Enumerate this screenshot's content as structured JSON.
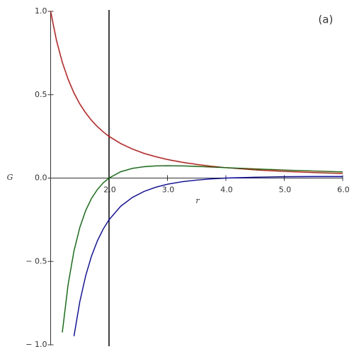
{
  "chart_data": {
    "type": "line",
    "annotation": "(a)",
    "x_label": "r",
    "y_label": "G",
    "x": [
      1,
      1.1,
      1.2,
      1.3,
      1.4,
      1.5,
      1.6,
      1.7,
      1.8,
      1.9,
      2,
      2.2,
      2.4,
      2.6,
      2.8,
      3,
      3.25,
      3.5,
      3.75,
      4,
      4.5,
      5,
      5.5,
      6
    ],
    "series": [
      {
        "color": "#e00000",
        "values": [
          1,
          0.826,
          0.694,
          0.592,
          0.51,
          0.444,
          0.391,
          0.346,
          0.309,
          0.277,
          0.25,
          0.207,
          0.174,
          0.148,
          0.128,
          0.111,
          0.095,
          0.082,
          0.071,
          0.0625,
          0.049,
          0.04,
          0.033,
          0.028
        ]
      },
      {
        "color": "#007000",
        "values": [
          null,
          null,
          -0.926,
          -0.637,
          -0.437,
          -0.296,
          -0.195,
          -0.122,
          -0.069,
          -0.029,
          0,
          0.038,
          0.058,
          0.068,
          0.073,
          0.074,
          0.073,
          0.07,
          0.066,
          0.0625,
          0.055,
          0.048,
          0.042,
          0.037
        ]
      },
      {
        "color": "#0000d0",
        "values": [
          null,
          null,
          null,
          null,
          -0.948,
          -0.741,
          -0.586,
          -0.468,
          -0.377,
          -0.306,
          -0.25,
          -0.169,
          -0.116,
          -0.08,
          -0.055,
          -0.037,
          -0.022,
          -0.012,
          -0.005,
          0,
          0.005,
          0.008,
          0.009,
          0.009
        ]
      }
    ],
    "vline": 2,
    "xlim": [
      1,
      6
    ],
    "ylim": [
      -1,
      1
    ],
    "xticks": [
      {
        "value": 2,
        "label": "2.0"
      },
      {
        "value": 3,
        "label": "3.0"
      },
      {
        "value": 4,
        "label": "4.0"
      },
      {
        "value": 5,
        "label": "5.0"
      },
      {
        "value": 6,
        "label": "6.0"
      }
    ],
    "yticks": [
      {
        "value": -1,
        "label": "− 1.0"
      },
      {
        "value": -0.5,
        "label": "− 0.5"
      },
      {
        "value": 0,
        "label": "0.0"
      },
      {
        "value": 0.5,
        "label": "0.5"
      },
      {
        "value": 1,
        "label": "1.0"
      }
    ]
  }
}
